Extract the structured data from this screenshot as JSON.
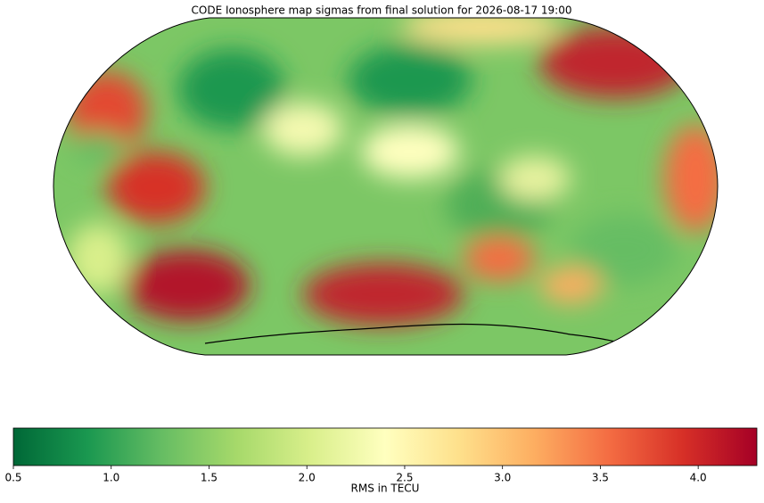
{
  "chart_data": {
    "type": "colormap",
    "title": "CODE Ionosphere map sigmas from final solution for 2026-08-17 19:00",
    "colorbar_label": "RMS in TECU",
    "colormap": [
      "#006837",
      "#1a9850",
      "#66bd63",
      "#a6d96a",
      "#d9ef8b",
      "#ffffbf",
      "#fee08b",
      "#fdae61",
      "#f46d43",
      "#d73027",
      "#a50026"
    ],
    "clim": [
      0.5,
      4.3
    ],
    "cticks": [
      0.5,
      {
        "value": 1,
        "label": "1.0"
      },
      1.5,
      {
        "value": 2,
        "label": "2.0"
      },
      2.5,
      {
        "value": 3,
        "label": "3.0"
      },
      3.5,
      {
        "value": 4,
        "label": "4.0"
      }
    ]
  }
}
